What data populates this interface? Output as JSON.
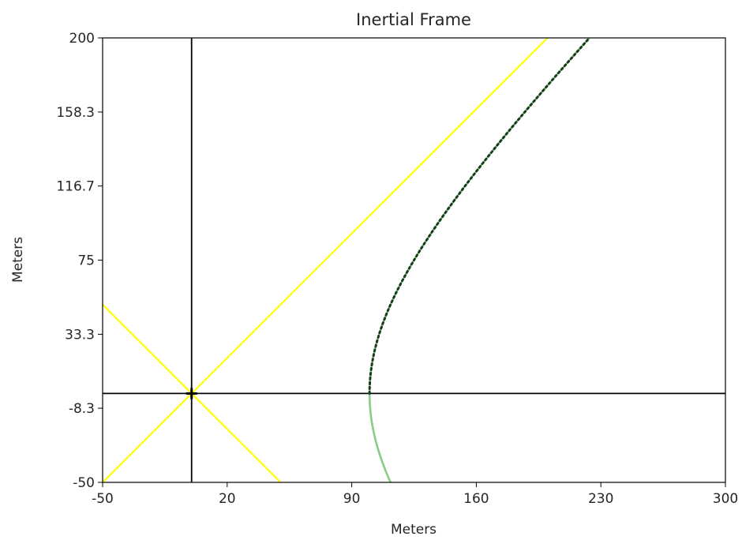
{
  "chart_data": {
    "type": "line",
    "title": "Inertial Frame",
    "xlabel": "Meters",
    "ylabel": "Meters",
    "xlim": [
      -50,
      300
    ],
    "ylim": [
      -50,
      200
    ],
    "xticks": [
      -50,
      20,
      90,
      160,
      230,
      300
    ],
    "xtick_labels": [
      "-50",
      "20",
      "90",
      "160",
      "230",
      "300"
    ],
    "yticks": [
      -50,
      -8.3,
      33.3,
      75,
      116.7,
      158.3,
      200
    ],
    "ytick_labels": [
      "-50",
      "-8.3",
      "33.3",
      "75",
      "116.7",
      "158.3",
      "200"
    ],
    "grid": false,
    "colors": {
      "axes": "#000000",
      "light_cone": "#ffff00",
      "worldline": "#88cc88",
      "worldline_dots": "#1a3a1a",
      "text": "#262626"
    },
    "series": [
      {
        "kind": "hline",
        "y": 0,
        "color": "#000000"
      },
      {
        "kind": "vline",
        "x": 0,
        "color": "#000000"
      },
      {
        "kind": "line",
        "color": "#ffff00",
        "x": [
          -50,
          200
        ],
        "y": [
          -50,
          200
        ]
      },
      {
        "kind": "line",
        "color": "#ffff00",
        "x": [
          -50,
          50
        ],
        "y": [
          50,
          -50
        ]
      },
      {
        "kind": "hyperbola",
        "color": "#88cc88",
        "a": 100,
        "x_offset": 0,
        "t_range": [
          -50,
          200
        ]
      },
      {
        "kind": "dotted_hyperbola",
        "color": "#1a3a1a",
        "a": 100,
        "t_range": [
          0,
          200
        ]
      }
    ],
    "markers": [
      {
        "x": 0,
        "y": 0,
        "symbol": "plus"
      }
    ]
  }
}
